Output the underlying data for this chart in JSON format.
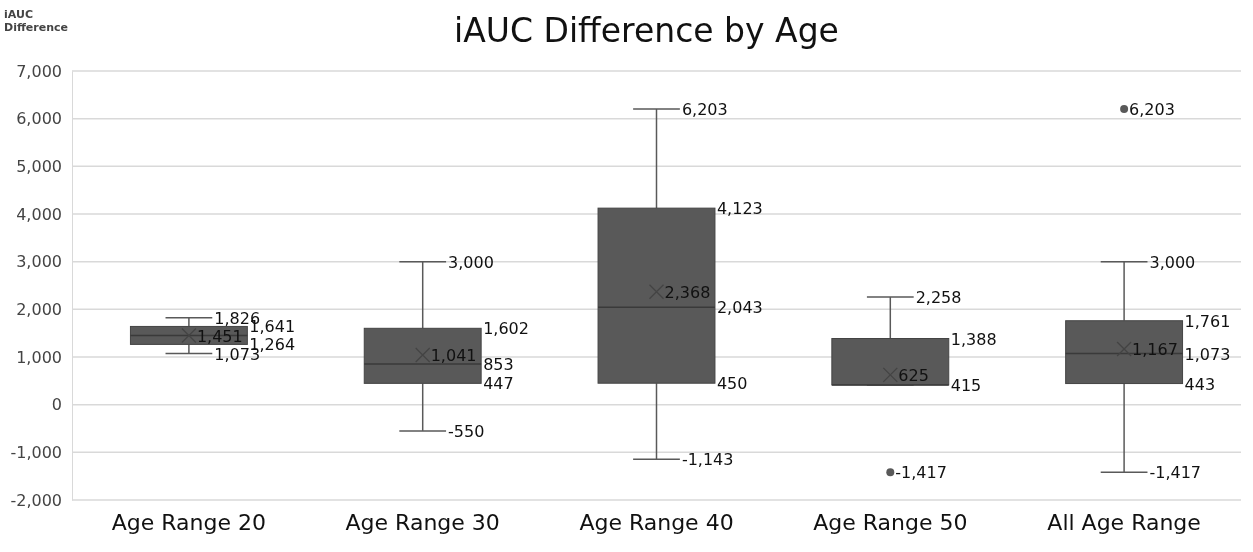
{
  "chart_data": {
    "type": "box",
    "title": "iAUC Difference by Age",
    "ylabel": "iAUC Difference",
    "categories": [
      "Age Range 20",
      "Age Range 30",
      "Age Range 40",
      "Age Range 50",
      "All Age Range"
    ],
    "boxes": [
      {
        "low": 1073,
        "q1": 1264,
        "median": 1451,
        "q3": 1641,
        "high": 1826,
        "mean": 1451
      },
      {
        "low": -550,
        "q1": 447,
        "median": 853,
        "q3": 1602,
        "high": 3000,
        "mean": 1041
      },
      {
        "low": -1143,
        "q1": 450,
        "median": 2043,
        "q3": 4123,
        "high": 6203,
        "mean": 2368
      },
      {
        "low": 415,
        "q1": 415,
        "median": 415,
        "q3": 1388,
        "high": 2258,
        "mean": 625,
        "outliers": [
          -1417
        ]
      },
      {
        "low": -1417,
        "q1": 443,
        "median": 1073,
        "q3": 1761,
        "high": 3000,
        "mean": 1167,
        "outliers": [
          6203
        ]
      }
    ],
    "color": "#595959",
    "ylim": [
      -2000,
      7000
    ],
    "yticks": [
      {
        "value": -2000,
        "label": "-2,000"
      },
      {
        "value": -1000,
        "label": "-1,000"
      },
      0,
      {
        "value": 1000,
        "label": "1,000"
      },
      {
        "value": 2000,
        "label": "2,000"
      },
      {
        "value": 3000,
        "label": "3,000"
      },
      {
        "value": 4000,
        "label": "4,000"
      },
      {
        "value": 5000,
        "label": "5,000"
      },
      {
        "value": 6000,
        "label": "6,000"
      },
      {
        "value": 7000,
        "label": "7,000"
      }
    ],
    "grid": true,
    "data_labels": true,
    "annotations": [
      "1,826",
      "1,641",
      "1,451",
      "1,264",
      "1,073",
      "3,000",
      "1,602",
      "1,041",
      "853",
      "447",
      "-550",
      "6,203",
      "4,123",
      "2,368",
      "2,043",
      "450",
      "-1,143",
      "2,258",
      "1,388",
      "625",
      "415",
      "-1,417",
      "3,000",
      "1,761",
      "1,167",
      "1,073",
      "443",
      "-1,417",
      "6,203"
    ]
  }
}
